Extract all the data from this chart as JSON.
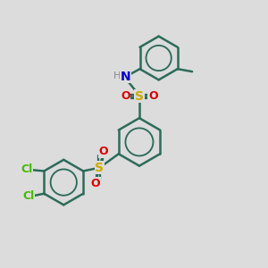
{
  "bg_color": "#dcdcdc",
  "bond_color": "#2d6b5a",
  "bond_width": 1.8,
  "S_color": "#ccaa00",
  "O_color": "#dd0000",
  "N_color": "#0000cc",
  "H_color": "#888888",
  "Cl_color": "#44bb00",
  "figsize": [
    3.0,
    3.0
  ],
  "dpi": 100,
  "xlim": [
    0,
    10
  ],
  "ylim": [
    0,
    10
  ]
}
